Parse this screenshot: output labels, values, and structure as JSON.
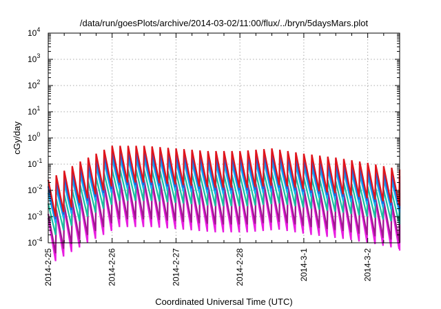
{
  "chart_data": {
    "type": "line",
    "title": "/data/run/goesPlots/archive/2014-03-02/11:00/flux/../bryn/5daysMars.plot",
    "xlabel": "Coordinated Universal Time (UTC)",
    "ylabel": "cGy/day",
    "y_scale": "log",
    "ylim": [
      0.0001,
      10000
    ],
    "xlim": [
      "2014-02-25",
      "2014-03-02 12:00"
    ],
    "grid": true,
    "legend": "none",
    "x_ticks": [
      "2014-2-25",
      "2014-2-26",
      "2014-2-27",
      "2014-2-28",
      "2014-3-1",
      "2014-3-2"
    ],
    "y_ticks": [
      {
        "base": "10",
        "exp": "4"
      },
      {
        "base": "10",
        "exp": "3"
      },
      {
        "base": "10",
        "exp": "2"
      },
      {
        "base": "10",
        "exp": "1"
      },
      {
        "base": "10",
        "exp": "0"
      },
      {
        "base": "10",
        "exp": "-1"
      },
      {
        "base": "10",
        "exp": "-2"
      },
      {
        "base": "10",
        "exp": "-3"
      },
      {
        "base": "10",
        "exp": "-4"
      }
    ],
    "sawtooth": {
      "period_hours": 3,
      "envelope_x_days": [
        0,
        0.5,
        1.0,
        1.5,
        2.0,
        2.5,
        3.0,
        3.5,
        4.0,
        4.5,
        5.0,
        5.5
      ],
      "envelope_log10": [
        -1.6,
        -0.9,
        -0.3,
        -0.3,
        -0.4,
        -0.5,
        -0.5,
        -0.4,
        -0.6,
        -0.75,
        -0.95,
        -1.2
      ]
    },
    "series": [
      {
        "color": "#e0141c",
        "peak_offset": 0.0,
        "drop": 1.4
      },
      {
        "color": "#1d5fe0",
        "peak_offset": -0.25,
        "drop": 1.25
      },
      {
        "color": "#14b4f0",
        "peak_offset": -0.5,
        "drop": 1.15
      },
      {
        "color": "#18c0a0",
        "peak_offset": -0.9,
        "drop": 1.2
      },
      {
        "color": "#a01890",
        "peak_offset": -1.3,
        "drop": 1.5
      },
      {
        "color": "#e81ce0",
        "peak_offset": -1.45,
        "drop": 1.65
      }
    ]
  }
}
